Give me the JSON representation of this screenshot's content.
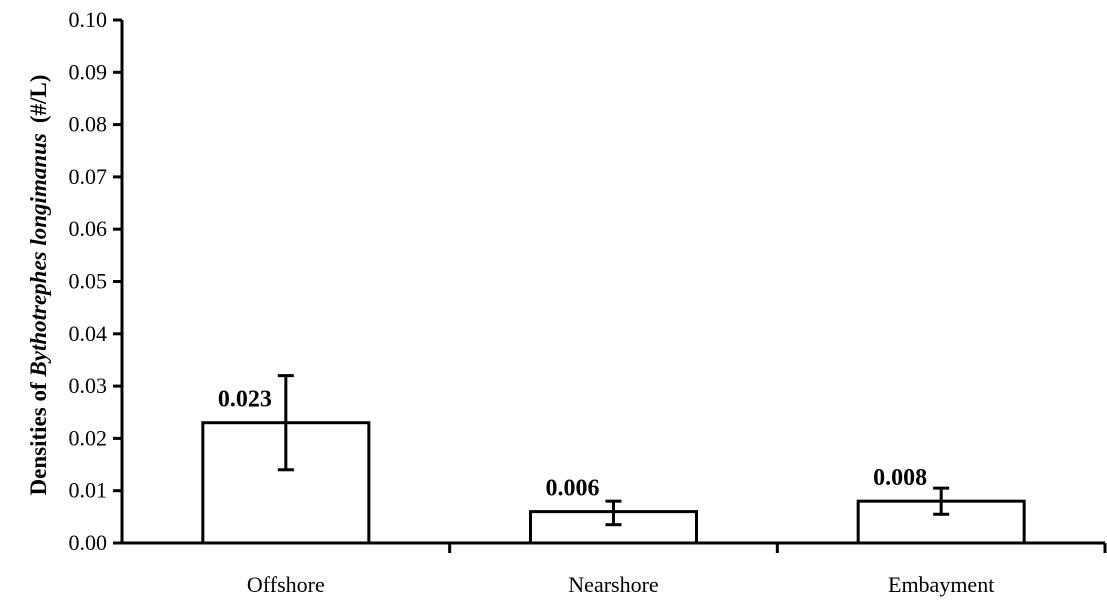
{
  "chart_data": {
    "type": "bar",
    "title": "",
    "xlabel": "",
    "ylabel": {
      "prefix": "Densities of ",
      "species": "Bythotrephes longimanus",
      "unit": "(#/L)"
    },
    "categories": [
      "Offshore",
      "Nearshore",
      "Embayment"
    ],
    "values": [
      0.023,
      0.006,
      0.008
    ],
    "value_labels": [
      "0.023",
      "0.006",
      "0.008"
    ],
    "error_low": [
      0.014,
      0.0035,
      0.0055
    ],
    "error_high": [
      0.032,
      0.008,
      0.0105
    ],
    "ylim": [
      0,
      0.1
    ],
    "yticks": [
      "0.00",
      "0.01",
      "0.02",
      "0.03",
      "0.04",
      "0.05",
      "0.06",
      "0.07",
      "0.08",
      "0.09",
      "0.10"
    ],
    "grid": false,
    "bar_fill": "#ffffff",
    "bar_stroke": "#000000"
  }
}
